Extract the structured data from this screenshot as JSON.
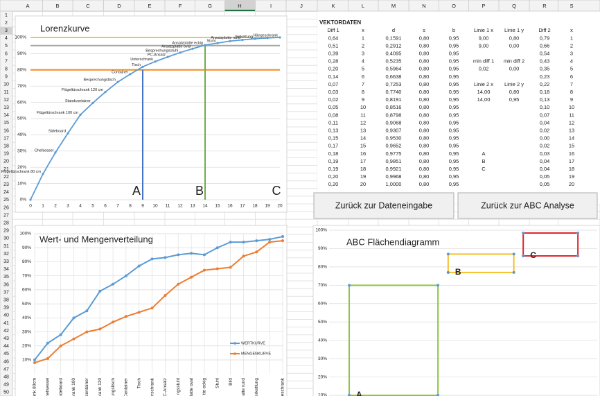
{
  "spreadsheet": {
    "columns": [
      "A",
      "B",
      "C",
      "D",
      "E",
      "F",
      "G",
      "H",
      "I",
      "J",
      "K",
      "L",
      "M",
      "N",
      "O",
      "P",
      "Q",
      "R",
      "S"
    ],
    "active_column": "H",
    "rows": [
      1,
      2,
      3,
      4,
      5,
      6,
      7,
      8,
      9,
      10,
      11,
      12,
      13,
      14,
      15,
      16,
      17,
      18,
      19,
      20,
      21,
      22,
      23,
      24,
      25,
      26,
      27,
      28,
      29,
      30,
      31,
      32,
      33,
      34,
      35,
      36,
      37,
      38,
      39,
      40,
      41,
      42,
      43,
      44,
      45,
      46,
      47,
      48,
      49,
      50
    ]
  },
  "vektordaten": {
    "title": "VEKTORDATEN",
    "headers": [
      "Diff 1",
      "x",
      "d",
      "s",
      "b",
      "Linie 1 x",
      "Linie 1 y",
      "Diff 2",
      "x"
    ],
    "rows": [
      [
        "0,64",
        "1",
        "0,1591",
        "0,80",
        "0,95",
        "9,00",
        "0,80",
        "0,79",
        "1"
      ],
      [
        "0,51",
        "2",
        "0,2912",
        "0,80",
        "0,95",
        "9,00",
        "0,00",
        "0,66",
        "2"
      ],
      [
        "0,39",
        "3",
        "0,4095",
        "0,80",
        "0,95",
        null,
        null,
        "0,54",
        "3"
      ],
      [
        "0,28",
        "4",
        "0,5235",
        "0,80",
        "0,95",
        "min diff 1",
        "min diff 2",
        "0,43",
        "4"
      ],
      [
        "0,20",
        "5",
        "0,5964",
        "0,80",
        "0,95",
        "0,02",
        "0,00",
        "0,35",
        "5"
      ],
      [
        "0,14",
        "6",
        "0,6638",
        "0,80",
        "0,95",
        null,
        null,
        "0,23",
        "6"
      ],
      [
        "0,07",
        "7",
        "0,7253",
        "0,80",
        "0,95",
        "Linie 2 x",
        "Linie 2 y",
        "0,22",
        "7"
      ],
      [
        "0,03",
        "8",
        "0,7740",
        "0,80",
        "0,95",
        "14,00",
        "0,80",
        "0,18",
        "8"
      ],
      [
        "0,02",
        "9",
        "0,8191",
        "0,80",
        "0,95",
        "14,00",
        "0,95",
        "0,13",
        "9"
      ],
      [
        "0,05",
        "10",
        "0,8516",
        "0,80",
        "0,95",
        null,
        null,
        "0,10",
        "10"
      ],
      [
        "0,08",
        "11",
        "0,8798",
        "0,80",
        "0,95",
        null,
        null,
        "0,07",
        "11"
      ],
      [
        "0,11",
        "12",
        "0,9068",
        "0,80",
        "0,95",
        null,
        null,
        "0,04",
        "12"
      ],
      [
        "0,13",
        "13",
        "0,9307",
        "0,80",
        "0,95",
        null,
        null,
        "0,02",
        "13"
      ],
      [
        "0,15",
        "14",
        "0,9530",
        "0,80",
        "0,95",
        null,
        null,
        "0,00",
        "14"
      ],
      [
        "0,17",
        "15",
        "0,9652",
        "0,80",
        "0,95",
        null,
        null,
        "0,02",
        "15"
      ],
      [
        "0,18",
        "16",
        "0,9775",
        "0,80",
        "0,95",
        "A",
        null,
        "0,03",
        "16"
      ],
      [
        "0,19",
        "17",
        "0,9851",
        "0,80",
        "0,95",
        "B",
        null,
        "0,04",
        "17"
      ],
      [
        "0,19",
        "18",
        "0,9921",
        "0,80",
        "0,95",
        "C",
        null,
        "0,04",
        "18"
      ],
      [
        "0,20",
        "19",
        "0,9968",
        "0,80",
        "0,95",
        null,
        null,
        "0,05",
        "19"
      ],
      [
        "0,20",
        "20",
        "1,0000",
        "0,80",
        "0,95",
        null,
        null,
        "0,05",
        "20"
      ]
    ]
  },
  "buttons": [
    "Zurück zur Dateneingabe",
    "Zurück zur ABC Analyse"
  ],
  "chart_data": [
    {
      "type": "lorenz",
      "title": "Lorenzkurve",
      "x": [
        0,
        1,
        2,
        3,
        4,
        5,
        6,
        7,
        8,
        9,
        10,
        11,
        12,
        13,
        14,
        15,
        16,
        17,
        18,
        19,
        20
      ],
      "values": [
        0,
        15.91,
        29.12,
        40.95,
        52.35,
        59.64,
        66.38,
        72.53,
        77.4,
        81.91,
        85.16,
        87.98,
        90.68,
        93.07,
        95.3,
        96.52,
        97.75,
        98.51,
        99.21,
        99.68,
        100
      ],
      "point_labels": [
        null,
        "Flügeltürschrank 80 cm",
        "Chefsessel",
        "Sideboard",
        "Flügeltürschrank 100 cm",
        "Standcontainer",
        "Flügeltürschrank 120 cm",
        "Besprechungstisch",
        "Container",
        "Tisch",
        "Unterschrank",
        "PC-Ansatz",
        "Besprechungsstuhl",
        "Ansatzplatte oval",
        "Ansatzplatte eckig",
        "Stuhl",
        null,
        "Ansatzplatte rund",
        "Verkettung",
        null,
        "Hängeschrank"
      ],
      "color": "#5b9bd5",
      "xlim": [
        0,
        20
      ],
      "xticks": [
        0,
        1,
        2,
        3,
        4,
        5,
        6,
        7,
        8,
        9,
        10,
        11,
        12,
        13,
        14,
        15,
        16,
        17,
        18,
        19,
        20
      ],
      "ylim": [
        0,
        100
      ],
      "yticks": [
        {
          "value": 0,
          "label": "0%"
        },
        {
          "value": 10,
          "label": "10%"
        },
        {
          "value": 20,
          "label": "20%"
        },
        {
          "value": 30,
          "label": "30%"
        },
        {
          "value": 40,
          "label": "40%"
        },
        {
          "value": 50,
          "label": "50%"
        },
        {
          "value": 60,
          "label": "60%"
        },
        {
          "value": 70,
          "label": "70%"
        },
        {
          "value": 80,
          "label": "80%"
        },
        {
          "value": 90,
          "label": "90%"
        },
        {
          "value": 100,
          "label": "100%"
        }
      ],
      "reference_lines": [
        {
          "axis": "y",
          "value": 100,
          "color": "#f2c744"
        },
        {
          "axis": "y",
          "value": 95,
          "color": "#a6a6a6"
        },
        {
          "axis": "y",
          "value": 80,
          "color": "#f58a1f"
        },
        {
          "axis": "x",
          "value": 9,
          "to": 80,
          "color": "#4472c4"
        },
        {
          "axis": "x",
          "value": 14,
          "to": 95,
          "color": "#70ad47"
        }
      ],
      "annotations": [
        "A",
        "B",
        "C"
      ]
    },
    {
      "type": "line",
      "title": "Wert- und Mengenverteilung",
      "categories": [
        "rank 80cm",
        "Chefsessel",
        "Sideboard",
        "hrank 100",
        "tcontainer",
        "hrank 120",
        "ungstisch",
        "Container",
        "Tisch",
        "terschrank",
        "PC-Ansatz",
        "ngsstuhl",
        "platte oval",
        "tte eckig",
        "Stuhl",
        "Bild",
        "atte rund",
        "Verkettung",
        null,
        "geschrank"
      ],
      "series": [
        {
          "name": "WERTKURVE",
          "color": "#5b9bd5",
          "values": [
            10,
            22,
            28,
            40,
            45,
            59,
            64,
            70,
            77,
            82,
            83,
            85,
            86,
            85,
            90,
            94,
            94,
            95,
            96,
            98
          ]
        },
        {
          "name": "MENGENKURVE",
          "color": "#ed7d31",
          "values": [
            8,
            11,
            20,
            25,
            30,
            32,
            37,
            41,
            44,
            47,
            56,
            64,
            69,
            74,
            75,
            76,
            84,
            87,
            94,
            95
          ]
        }
      ],
      "ylim": [
        10,
        100
      ],
      "yticks": [
        {
          "value": 10,
          "label": "10%"
        },
        {
          "value": 20,
          "label": "20%"
        },
        {
          "value": 30,
          "label": "30%"
        },
        {
          "value": 40,
          "label": "40%"
        },
        {
          "value": 50,
          "label": "50%"
        },
        {
          "value": 60,
          "label": "60%"
        },
        {
          "value": 70,
          "label": "70%"
        },
        {
          "value": 80,
          "label": "80%"
        },
        {
          "value": 90,
          "label": "90%"
        },
        {
          "value": 100,
          "label": "100%"
        }
      ]
    },
    {
      "type": "scatter",
      "title": "ABC Flächendiagramm",
      "xlim": [
        0,
        100
      ],
      "ylim": [
        10,
        100
      ],
      "yticks": [
        {
          "value": 10,
          "label": "10%"
        },
        {
          "value": 20,
          "label": "20%"
        },
        {
          "value": 30,
          "label": "30%"
        },
        {
          "value": 40,
          "label": "40%"
        },
        {
          "value": 50,
          "label": "50%"
        },
        {
          "value": 60,
          "label": "60%"
        },
        {
          "value": 70,
          "label": "70%"
        },
        {
          "value": 80,
          "label": "80%"
        },
        {
          "value": 90,
          "label": "90%"
        },
        {
          "value": 100,
          "label": "100%"
        }
      ],
      "series": [
        {
          "name": "A",
          "color": "#8dc63f",
          "x": [
            7.5,
            40.6,
            40.6,
            7.5,
            7.5
          ],
          "values": [
            10,
            10,
            70,
            70,
            10
          ]
        },
        {
          "name": "B",
          "color": "#f5c02c",
          "x": [
            44.4,
            68.9,
            68.9,
            44.4,
            44.4
          ],
          "values": [
            77,
            77,
            87,
            87,
            77
          ]
        },
        {
          "name": "C",
          "color": "#e0262b",
          "x": [
            72.4,
            92.8,
            92.8,
            72.4,
            72.4
          ],
          "values": [
            86,
            86,
            98.5,
            98.5,
            86
          ]
        }
      ]
    }
  ]
}
